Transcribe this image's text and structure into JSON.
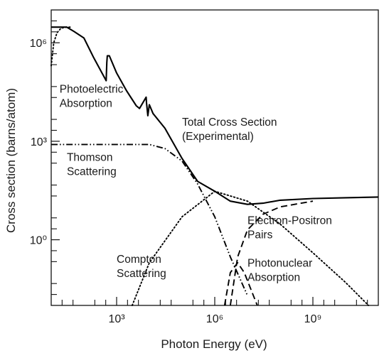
{
  "chart_data": {
    "type": "line",
    "title": "",
    "xlabel": "Photon Energy (eV)",
    "ylabel": "Cross section (barns/atom)",
    "x_scale": "log",
    "y_scale": "log",
    "xlim": [
      10,
      100000000000.0
    ],
    "ylim": [
      0.01,
      10000000.0
    ],
    "grid": false,
    "x_ticks": [
      {
        "value": 1000,
        "label": "10³"
      },
      {
        "value": 1000000,
        "label": "10⁶"
      },
      {
        "value": 1000000000,
        "label": "10⁹"
      }
    ],
    "y_ticks": [
      {
        "value": 1,
        "label": "10⁰"
      },
      {
        "value": 1000,
        "label": "10³"
      },
      {
        "value": 1000000,
        "label": "10⁶"
      }
    ],
    "series": [
      {
        "name": "Total Cross Section (Experimental)",
        "style": "solid",
        "color": "#000000",
        "points": [
          [
            10,
            3000000.0
          ],
          [
            30,
            3000000.0
          ],
          [
            50,
            2200000.0
          ],
          [
            100,
            1400000.0
          ],
          [
            200,
            350000.0
          ],
          [
            480,
            70000.0
          ],
          [
            500,
            250000.0
          ],
          [
            520,
            400000.0
          ],
          [
            600,
            400000.0
          ],
          [
            1000,
            120000.0
          ],
          [
            2000,
            35000.0
          ],
          [
            4000,
            12000.0
          ],
          [
            5000,
            10000.0
          ],
          [
            8000,
            22000.0
          ],
          [
            8200,
            15000.0
          ],
          [
            9000,
            6000.0
          ],
          [
            10000,
            13000.0
          ],
          [
            13000,
            7000.0
          ],
          [
            30000,
            2500.0
          ],
          [
            100000,
            300
          ],
          [
            300000,
            60
          ],
          [
            1000000,
            30
          ],
          [
            3000000,
            15
          ],
          [
            10000000,
            12
          ],
          [
            30000000,
            13
          ],
          [
            100000000,
            16
          ],
          [
            1000000000,
            18
          ],
          [
            10000000000.0,
            19
          ],
          [
            100000000000.0,
            20
          ]
        ]
      },
      {
        "name": "Photoelectric Absorption",
        "style": "dotted",
        "color": "#000000",
        "points": [
          [
            10,
            200000.0
          ],
          [
            12,
            1000000.0
          ],
          [
            15,
            2000000.0
          ],
          [
            20,
            2800000.0
          ],
          [
            30,
            3000000.0
          ],
          [
            40,
            3000000.0
          ]
        ]
      },
      {
        "name": "Thomson Scattering",
        "style": "dash-dot-dot",
        "color": "#000000",
        "points": [
          [
            10,
            800
          ],
          [
            10000,
            800
          ],
          [
            30000,
            600
          ],
          [
            100000,
            250
          ],
          [
            300000,
            50
          ],
          [
            1000000,
            5
          ],
          [
            3000000,
            0.3
          ],
          [
            10000000,
            0.02
          ]
        ]
      },
      {
        "name": "Compton Scattering",
        "style": "dotted",
        "color": "#000000",
        "points": [
          [
            3000,
            0.01
          ],
          [
            10000,
            0.2
          ],
          [
            100000,
            5
          ],
          [
            1000000,
            30
          ],
          [
            10000000,
            15
          ],
          [
            100000000,
            3
          ],
          [
            1000000000,
            0.4
          ],
          [
            10000000000.0,
            0.05
          ],
          [
            50000000000.0,
            0.01
          ]
        ]
      },
      {
        "name": "Electron-Positron Pairs",
        "style": "dashed",
        "color": "#000000",
        "points": [
          [
            3000000,
            0.01
          ],
          [
            5000000,
            0.3
          ],
          [
            10000000,
            2
          ],
          [
            30000000,
            6
          ],
          [
            100000000,
            10
          ],
          [
            1000000000,
            15
          ]
        ]
      },
      {
        "name": "Photonuclear Absorption",
        "style": "dashed",
        "color": "#000000",
        "points": [
          [
            2000000,
            0.01
          ],
          [
            3000000,
            0.1
          ],
          [
            5000000,
            0.2
          ],
          [
            8000000,
            0.1
          ],
          [
            20000000,
            0.01
          ]
        ]
      }
    ],
    "annotations": [
      {
        "lines": [
          "Photoelectric",
          "Absorption"
        ],
        "x": 18,
        "y": 30000
      },
      {
        "lines": [
          "Total Cross Section",
          "(Experimental)"
        ],
        "x": 100000,
        "y": 3000
      },
      {
        "lines": [
          "Thomson",
          "Scattering"
        ],
        "x": 30,
        "y": 250
      },
      {
        "lines": [
          "Compton",
          "Scattering"
        ],
        "x": 1000,
        "y": 0.2
      },
      {
        "lines": [
          "Electron-Positron",
          "Pairs"
        ],
        "x": 10000000,
        "y": 3
      },
      {
        "lines": [
          "Photonuclear",
          "Absorption"
        ],
        "x": 10000000,
        "y": 0.15
      }
    ]
  }
}
